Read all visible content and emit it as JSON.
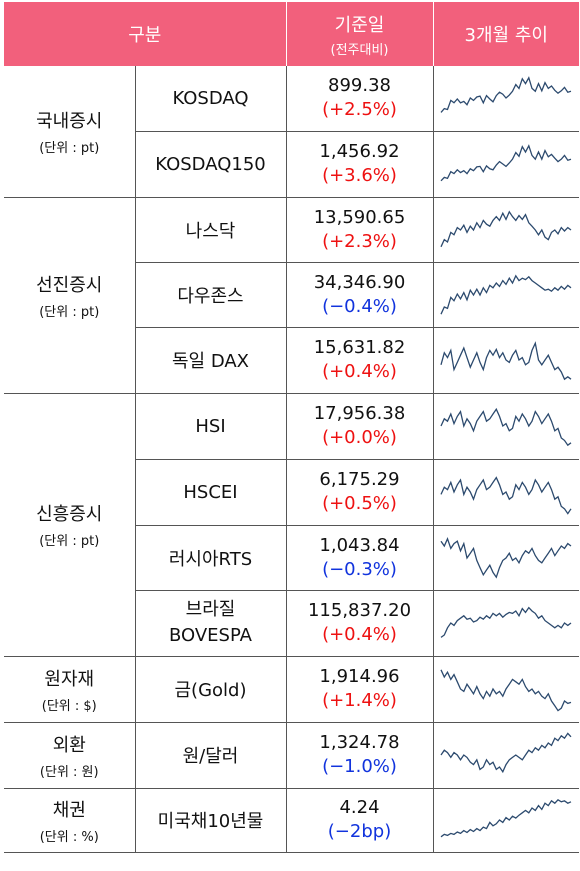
{
  "header": {
    "category": "구분",
    "base": "기준일",
    "base_sub": "(전주대비)",
    "trend": "3개월 추이"
  },
  "groups": [
    {
      "title": "국내증시",
      "unit": "(단위 : pt)",
      "rows": [
        {
          "name": "KOSDAQ",
          "value": "899.38",
          "change": "(+2.5%)",
          "dir": "up",
          "trend": [
            0.8,
            0.72,
            0.74,
            0.55,
            0.6,
            0.52,
            0.6,
            0.57,
            0.64,
            0.5,
            0.55,
            0.48,
            0.46,
            0.6,
            0.45,
            0.52,
            0.58,
            0.45,
            0.38,
            0.42,
            0.5,
            0.44,
            0.36,
            0.22,
            0.3,
            0.1,
            0.2,
            0.08,
            0.3,
            0.36,
            0.2,
            0.35,
            0.18,
            0.3,
            0.25,
            0.34,
            0.4,
            0.35,
            0.28,
            0.38,
            0.36
          ]
        },
        {
          "name": "KOSDAQ150",
          "value": "1,456.92",
          "change": "(+3.6%)",
          "dir": "up",
          "trend": [
            0.85,
            0.78,
            0.8,
            0.66,
            0.7,
            0.62,
            0.68,
            0.64,
            0.7,
            0.6,
            0.64,
            0.56,
            0.55,
            0.66,
            0.54,
            0.6,
            0.62,
            0.52,
            0.45,
            0.5,
            0.55,
            0.48,
            0.4,
            0.26,
            0.34,
            0.14,
            0.25,
            0.12,
            0.32,
            0.4,
            0.25,
            0.4,
            0.22,
            0.35,
            0.3,
            0.38,
            0.45,
            0.4,
            0.32,
            0.42,
            0.4
          ]
        }
      ]
    },
    {
      "title": "선진증시",
      "unit": "(단위 : pt)",
      "rows": [
        {
          "name": "나스닥",
          "value": "13,590.65",
          "change": "(+2.3%)",
          "dir": "up",
          "trend": [
            0.85,
            0.7,
            0.75,
            0.55,
            0.6,
            0.45,
            0.5,
            0.4,
            0.55,
            0.42,
            0.5,
            0.35,
            0.45,
            0.3,
            0.38,
            0.42,
            0.3,
            0.22,
            0.3,
            0.15,
            0.28,
            0.12,
            0.22,
            0.3,
            0.2,
            0.28,
            0.18,
            0.35,
            0.42,
            0.5,
            0.6,
            0.5,
            0.65,
            0.7,
            0.55,
            0.5,
            0.58,
            0.45,
            0.52,
            0.45,
            0.5
          ]
        },
        {
          "name": "다우존스",
          "value": "34,346.90",
          "change": "(−0.4%)",
          "dir": "down",
          "trend": [
            0.9,
            0.75,
            0.78,
            0.55,
            0.62,
            0.48,
            0.58,
            0.45,
            0.6,
            0.4,
            0.5,
            0.38,
            0.5,
            0.35,
            0.45,
            0.3,
            0.35,
            0.25,
            0.32,
            0.2,
            0.28,
            0.15,
            0.25,
            0.1,
            0.2,
            0.15,
            0.18,
            0.12,
            0.2,
            0.25,
            0.3,
            0.35,
            0.4,
            0.38,
            0.42,
            0.35,
            0.4,
            0.32,
            0.38,
            0.3,
            0.35
          ]
        },
        {
          "name": "독일 DAX",
          "value": "15,631.82",
          "change": "(+0.4%)",
          "dir": "up",
          "trend": [
            0.6,
            0.35,
            0.45,
            0.3,
            0.7,
            0.55,
            0.4,
            0.25,
            0.45,
            0.65,
            0.5,
            0.35,
            0.55,
            0.7,
            0.45,
            0.3,
            0.4,
            0.28,
            0.45,
            0.35,
            0.5,
            0.55,
            0.4,
            0.3,
            0.5,
            0.45,
            0.6,
            0.55,
            0.3,
            0.15,
            0.5,
            0.6,
            0.5,
            0.4,
            0.55,
            0.7,
            0.65,
            0.75,
            0.9,
            0.85,
            0.9
          ]
        }
      ]
    },
    {
      "title": "신흥증시",
      "unit": "(단위 : pt)",
      "rows": [
        {
          "name": "HSI",
          "value": "17,956.38",
          "change": "(+0.0%)",
          "dir": "up",
          "trend": [
            0.5,
            0.35,
            0.4,
            0.25,
            0.45,
            0.3,
            0.2,
            0.5,
            0.35,
            0.45,
            0.6,
            0.4,
            0.3,
            0.2,
            0.4,
            0.35,
            0.25,
            0.15,
            0.3,
            0.5,
            0.45,
            0.6,
            0.55,
            0.3,
            0.4,
            0.25,
            0.35,
            0.5,
            0.4,
            0.2,
            0.3,
            0.45,
            0.35,
            0.25,
            0.4,
            0.6,
            0.55,
            0.75,
            0.8,
            0.9,
            0.85
          ]
        },
        {
          "name": "HSCEI",
          "value": "6,175.29",
          "change": "(+0.5%)",
          "dir": "up",
          "trend": [
            0.55,
            0.4,
            0.45,
            0.3,
            0.5,
            0.35,
            0.25,
            0.55,
            0.4,
            0.5,
            0.65,
            0.45,
            0.35,
            0.25,
            0.45,
            0.4,
            0.3,
            0.2,
            0.35,
            0.55,
            0.5,
            0.65,
            0.6,
            0.35,
            0.45,
            0.3,
            0.4,
            0.55,
            0.45,
            0.25,
            0.35,
            0.5,
            0.4,
            0.3,
            0.45,
            0.65,
            0.6,
            0.8,
            0.85,
            0.95,
            0.85
          ]
        },
        {
          "name": "러시아RTS",
          "value": "1,043.84",
          "change": "(−0.3%)",
          "dir": "down",
          "trend": [
            0.15,
            0.25,
            0.1,
            0.3,
            0.2,
            0.15,
            0.35,
            0.2,
            0.5,
            0.4,
            0.3,
            0.55,
            0.7,
            0.85,
            0.75,
            0.65,
            0.8,
            0.9,
            0.7,
            0.55,
            0.5,
            0.4,
            0.55,
            0.5,
            0.6,
            0.45,
            0.35,
            0.4,
            0.3,
            0.45,
            0.55,
            0.6,
            0.5,
            0.4,
            0.3,
            0.45,
            0.35,
            0.25,
            0.3,
            0.2,
            0.25
          ]
        },
        {
          "name": "브라질\nBOVESPA",
          "value": "115,837.20",
          "change": "(+0.4%)",
          "dir": "up",
          "trend": [
            0.8,
            0.75,
            0.6,
            0.5,
            0.55,
            0.45,
            0.4,
            0.35,
            0.42,
            0.4,
            0.48,
            0.45,
            0.38,
            0.42,
            0.35,
            0.4,
            0.3,
            0.35,
            0.3,
            0.38,
            0.32,
            0.28,
            0.3,
            0.25,
            0.35,
            0.2,
            0.28,
            0.18,
            0.25,
            0.3,
            0.4,
            0.35,
            0.45,
            0.5,
            0.55,
            0.6,
            0.55,
            0.6,
            0.5,
            0.55,
            0.5
          ]
        }
      ]
    },
    {
      "title": "원자재",
      "unit": "(단위 : $)",
      "rows": [
        {
          "name": "금(Gold)",
          "value": "1,914.96",
          "change": "(+1.4%)",
          "dir": "up",
          "trend": [
            0.1,
            0.25,
            0.15,
            0.3,
            0.2,
            0.35,
            0.5,
            0.55,
            0.4,
            0.5,
            0.6,
            0.45,
            0.6,
            0.7,
            0.55,
            0.65,
            0.5,
            0.6,
            0.55,
            0.65,
            0.5,
            0.4,
            0.3,
            0.35,
            0.4,
            0.3,
            0.45,
            0.55,
            0.5,
            0.6,
            0.55,
            0.65,
            0.7,
            0.6,
            0.75,
            0.85,
            0.95,
            0.9,
            0.75,
            0.8,
            0.78
          ]
        }
      ]
    },
    {
      "title": "외환",
      "unit": "(단위 : 원)",
      "rows": [
        {
          "name": "원/달러",
          "value": "1,324.78",
          "change": "(−1.0%)",
          "dir": "down",
          "trend": [
            0.5,
            0.4,
            0.45,
            0.55,
            0.45,
            0.5,
            0.6,
            0.5,
            0.55,
            0.65,
            0.7,
            0.6,
            0.8,
            0.75,
            0.6,
            0.7,
            0.65,
            0.8,
            0.75,
            0.85,
            0.7,
            0.6,
            0.55,
            0.5,
            0.55,
            0.6,
            0.5,
            0.4,
            0.45,
            0.35,
            0.4,
            0.3,
            0.35,
            0.25,
            0.3,
            0.15,
            0.2,
            0.1,
            0.15,
            0.05,
            0.12
          ]
        }
      ]
    },
    {
      "title": "채권",
      "unit": "(단위 : %)",
      "rows": [
        {
          "name": "미국채10년물",
          "value": "4.24",
          "change": "(−2bp)",
          "dir": "down",
          "trend": [
            0.85,
            0.8,
            0.82,
            0.78,
            0.8,
            0.75,
            0.78,
            0.72,
            0.76,
            0.7,
            0.74,
            0.68,
            0.72,
            0.65,
            0.68,
            0.55,
            0.62,
            0.58,
            0.5,
            0.55,
            0.45,
            0.5,
            0.42,
            0.46,
            0.4,
            0.35,
            0.3,
            0.35,
            0.25,
            0.3,
            0.2,
            0.28,
            0.15,
            0.2,
            0.1,
            0.15,
            0.08,
            0.12,
            0.1,
            0.15,
            0.12
          ]
        }
      ]
    }
  ]
}
